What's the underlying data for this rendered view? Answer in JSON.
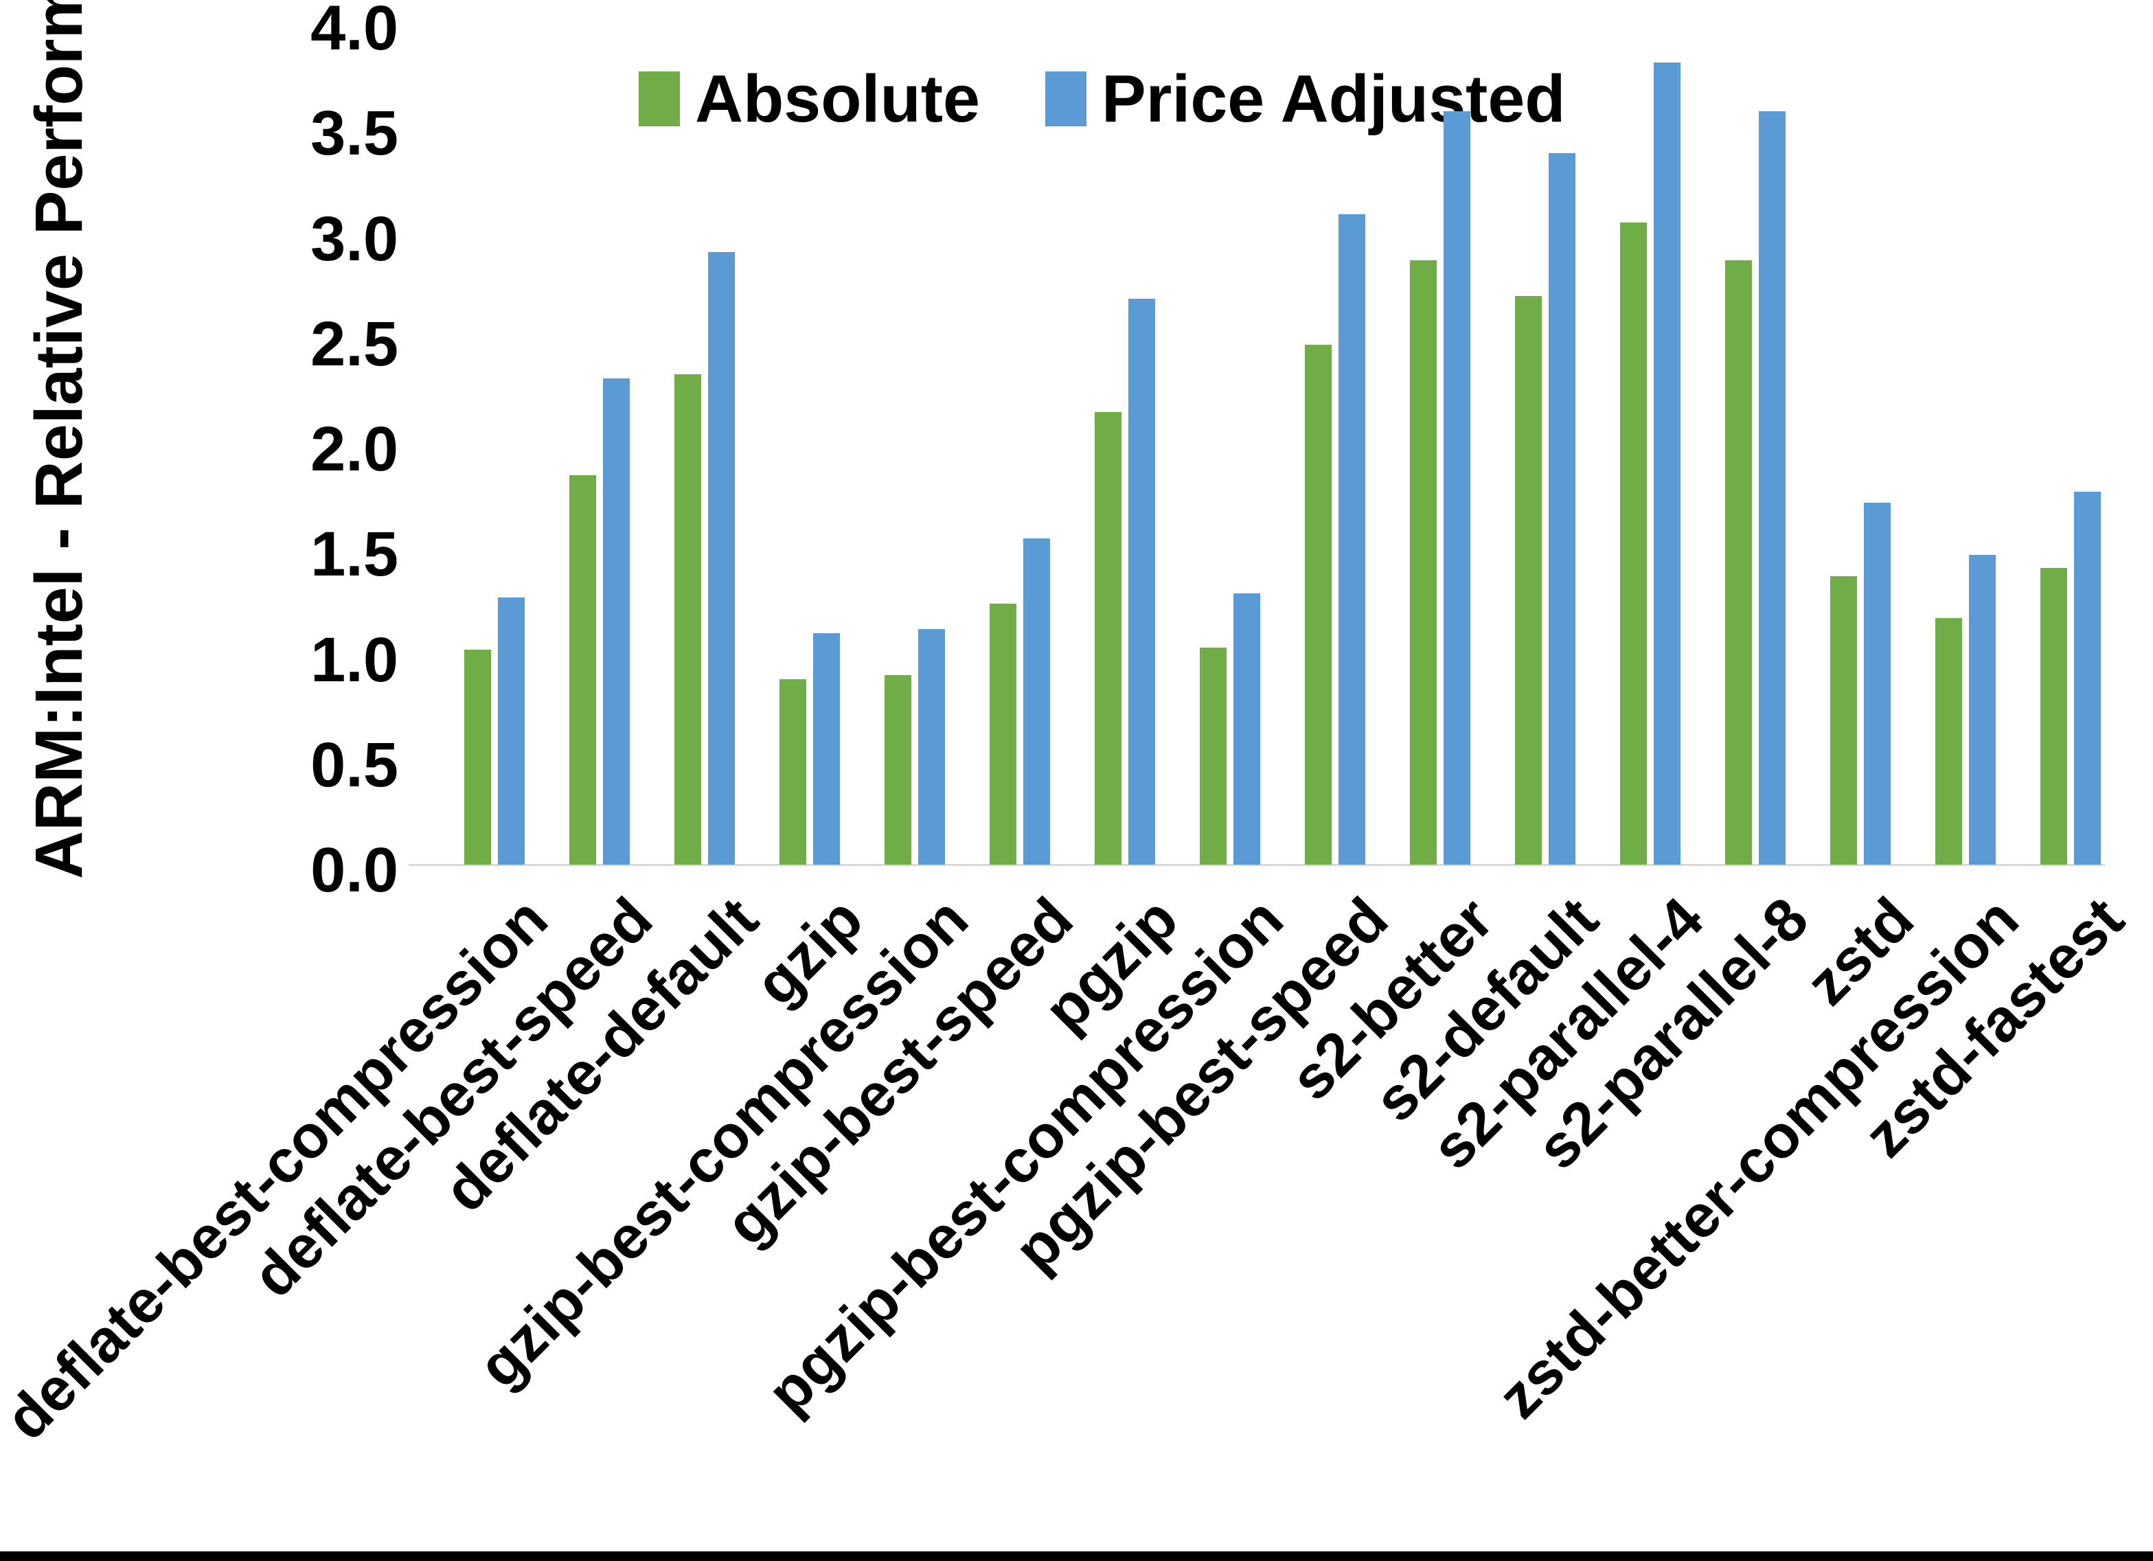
{
  "figure": {
    "y_axis_title": "ARM:Intel - Relative Performance"
  },
  "colors": {
    "absolute_green": "#70AD47",
    "price_adjusted_blue": "#5B9BD5",
    "axis_line": "#D9D9D9",
    "text": "#000000",
    "bottom_rule": "#000000",
    "background": "#FFFFFF"
  },
  "legend": {
    "items": [
      {
        "label": "Absolute",
        "color": "#70AD47"
      },
      {
        "label": "Price Adjusted",
        "color": "#5B9BD5"
      }
    ]
  },
  "chart_data": {
    "type": "bar",
    "title": "",
    "xlabel": "",
    "ylabel": "ARM:Intel - Relative Performance",
    "categories": [
      "deflate-best-compression",
      "deflate-best-speed",
      "deflate-default",
      "gzip",
      "gzip-best-compression",
      "gzip-best-speed",
      "pgzip",
      "pgzip-best-compression",
      "pgzip-best-speed",
      "s2-better",
      "s2-default",
      "s2-parallel-4",
      "s2-parallel-8",
      "zstd",
      "zstd-better-compression",
      "zstd-fastest"
    ],
    "series": [
      {
        "name": "Absolute",
        "color": "#70AD47",
        "values": [
          1.02,
          1.85,
          2.33,
          0.88,
          0.9,
          1.24,
          2.15,
          1.03,
          2.47,
          2.87,
          2.7,
          3.05,
          2.87,
          1.37,
          1.17,
          1.41
        ]
      },
      {
        "name": "Price Adjusted",
        "color": "#5B9BD5",
        "values": [
          1.27,
          2.31,
          2.91,
          1.1,
          1.12,
          1.55,
          2.69,
          1.29,
          3.09,
          3.58,
          3.38,
          3.81,
          3.58,
          1.72,
          1.47,
          1.77
        ]
      }
    ],
    "ylim": [
      0.0,
      4.0
    ],
    "ytick_step": 0.5,
    "ytick_labels": [
      "0.0",
      "0.5",
      "1.0",
      "1.5",
      "2.0",
      "2.5",
      "3.0",
      "3.5",
      "4.0"
    ],
    "grid": false,
    "legend_position": "top-center"
  }
}
